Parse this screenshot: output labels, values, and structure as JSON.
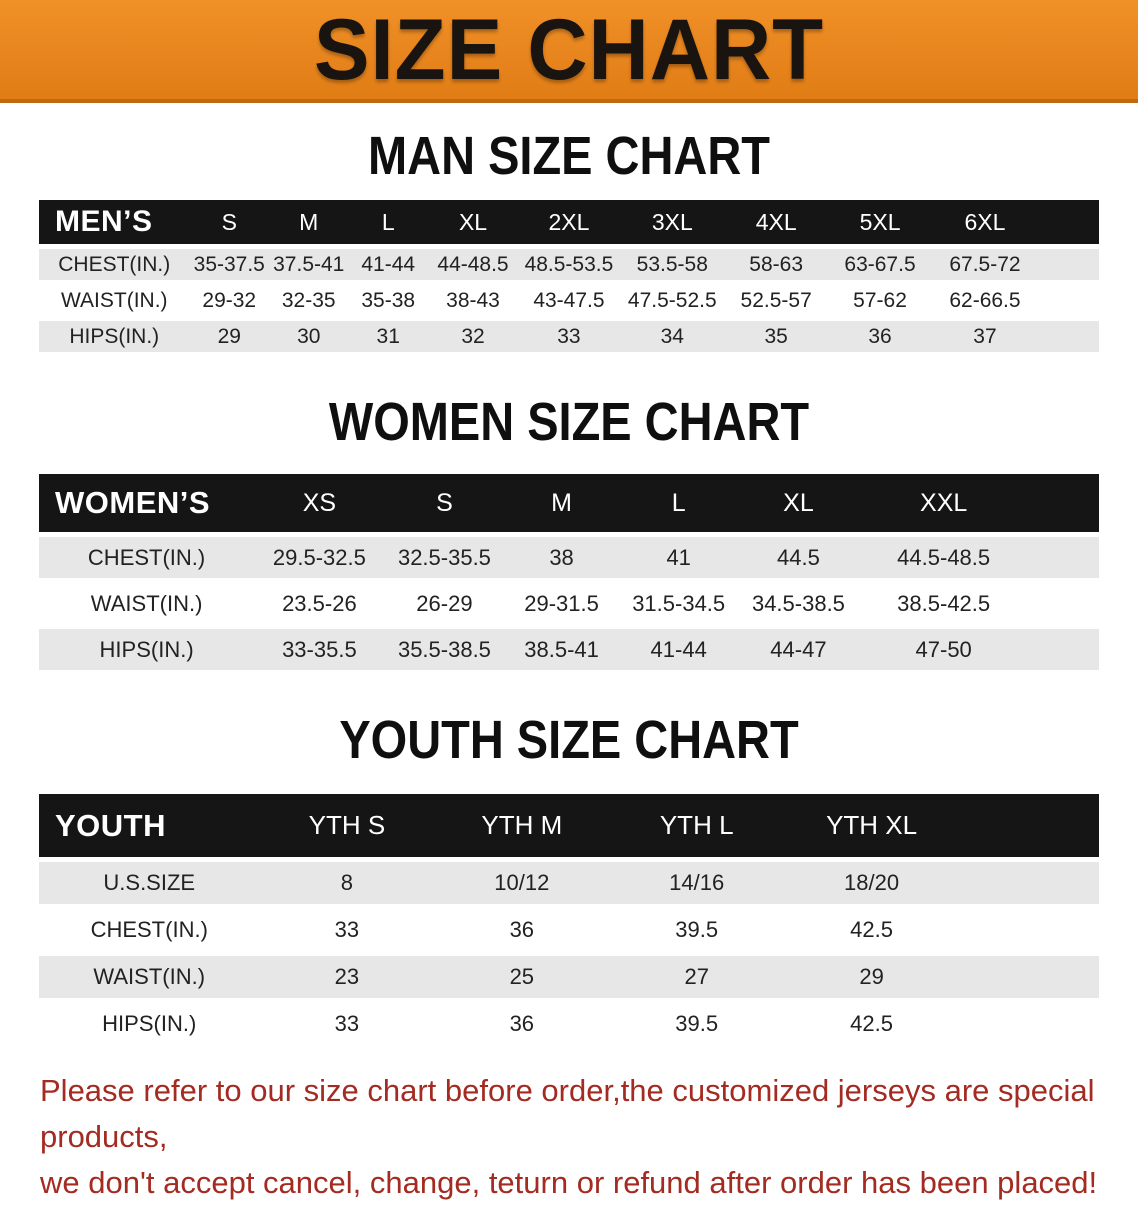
{
  "banner": {
    "title": "SIZE CHART"
  },
  "colors": {
    "accent_orange": "#E8851E",
    "banner_border": "#C06A10",
    "header_black": "#151515",
    "row_gray": "#E7E7E7",
    "footnote_red": "#A32B22"
  },
  "chart_data": [
    {
      "type": "table",
      "title": "MAN SIZE CHART",
      "corner_label": "MEN’S",
      "columns": [
        "S",
        "M",
        "L",
        "XL",
        "2XL",
        "3XL",
        "4XL",
        "5XL",
        "6XL"
      ],
      "rows": [
        {
          "label": "CHEST(IN.)",
          "values": [
            "35-37.5",
            "37.5-41",
            "41-44",
            "44-48.5",
            "48.5-53.5",
            "53.5-58",
            "58-63",
            "63-67.5",
            "67.5-72"
          ]
        },
        {
          "label": "WAIST(IN.)",
          "values": [
            "29-32",
            "32-35",
            "35-38",
            "38-43",
            "43-47.5",
            "47.5-52.5",
            "52.5-57",
            "57-62",
            "62-66.5"
          ]
        },
        {
          "label": "HIPS(IN.)",
          "values": [
            "29",
            "30",
            "31",
            "32",
            "33",
            "34",
            "35",
            "36",
            "37"
          ]
        }
      ]
    },
    {
      "type": "table",
      "title": "WOMEN SIZE CHART",
      "corner_label": "WOMEN’S",
      "columns": [
        "XS",
        "S",
        "M",
        "L",
        "XL",
        "XXL"
      ],
      "rows": [
        {
          "label": "CHEST(IN.)",
          "values": [
            "29.5-32.5",
            "32.5-35.5",
            "38",
            "41",
            "44.5",
            "44.5-48.5"
          ]
        },
        {
          "label": "WAIST(IN.)",
          "values": [
            "23.5-26",
            "26-29",
            "29-31.5",
            "31.5-34.5",
            "34.5-38.5",
            "38.5-42.5"
          ]
        },
        {
          "label": "HIPS(IN.)",
          "values": [
            "33-35.5",
            "35.5-38.5",
            "38.5-41",
            "41-44",
            "44-47",
            "47-50"
          ]
        }
      ]
    },
    {
      "type": "table",
      "title": "YOUTH SIZE CHART",
      "corner_label": "YOUTH",
      "columns": [
        "YTH S",
        "YTH M",
        "YTH L",
        "YTH XL"
      ],
      "rows": [
        {
          "label": "U.S.SIZE",
          "values": [
            "8",
            "10/12",
            "14/16",
            "18/20"
          ]
        },
        {
          "label": "CHEST(IN.)",
          "values": [
            "33",
            "36",
            "39.5",
            "42.5"
          ]
        },
        {
          "label": "WAIST(IN.)",
          "values": [
            "23",
            "25",
            "27",
            "29"
          ]
        },
        {
          "label": "HIPS(IN.)",
          "values": [
            "33",
            "36",
            "39.5",
            "42.5"
          ]
        }
      ]
    }
  ],
  "footnote": {
    "line1": "Please refer to our size chart before order,the customized jerseys are special products,",
    "line2": "we don't accept cancel, change, teturn or refund after order has been placed!"
  }
}
